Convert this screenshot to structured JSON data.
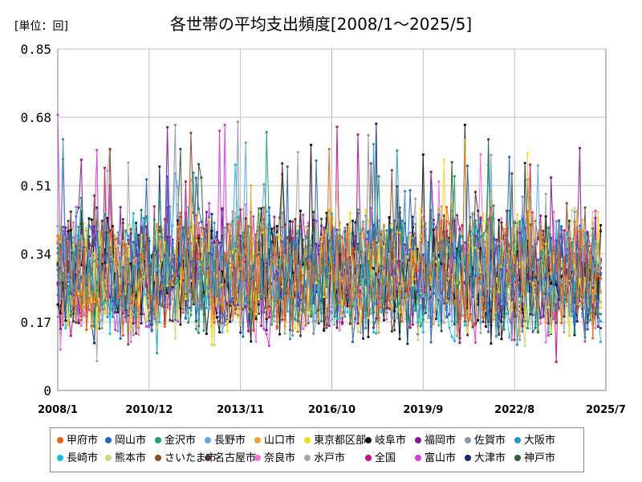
{
  "unit_label": "[単位：回]",
  "chart_data": {
    "type": "line",
    "title": "各世帯の平均支出頻度[2008/1～2025/5]",
    "xlabel": "",
    "ylabel": "",
    "ylim": [
      0,
      0.85
    ],
    "yticks": [
      0,
      0.17,
      0.34,
      0.51,
      0.68,
      0.85
    ],
    "ytick_labels": [
      "0",
      "0.17",
      "0.34",
      "0.51",
      "0.68",
      "0.85"
    ],
    "xlim": [
      "2008-01",
      "2025-07"
    ],
    "xticks": [
      "2008-01",
      "2010-12",
      "2013-11",
      "2016-10",
      "2019-09",
      "2022-08",
      "2025-07"
    ],
    "xtick_labels": [
      "2008/1",
      "2010/12",
      "2013/11",
      "2016/10",
      "2019/9",
      "2022/8",
      "2025/7"
    ],
    "grid": true,
    "legend_position": "bottom",
    "start": "2008-01",
    "end": "2025-05",
    "series": [
      {
        "name": "甲府市",
        "color": "#ED5F19"
      },
      {
        "name": "岡山市",
        "color": "#2A63C9"
      },
      {
        "name": "金沢市",
        "color": "#1F9E74"
      },
      {
        "name": "長野市",
        "color": "#63A7E5"
      },
      {
        "name": "山口市",
        "color": "#F0A22A"
      },
      {
        "name": "東京都区部",
        "color": "#F2DC12"
      },
      {
        "name": "岐阜市",
        "color": "#111111"
      },
      {
        "name": "福岡市",
        "color": "#8B149B"
      },
      {
        "name": "佐賀市",
        "color": "#8B98A9"
      },
      {
        "name": "大阪市",
        "color": "#2596C9"
      },
      {
        "name": "長崎市",
        "color": "#17BFE6"
      },
      {
        "name": "熊本市",
        "color": "#C6D97B"
      },
      {
        "name": "さいたま市",
        "color": "#8E4A2B"
      },
      {
        "name": "名古屋市",
        "color": "#59332A"
      },
      {
        "name": "奈良市",
        "color": "#F070DA"
      },
      {
        "name": "水戸市",
        "color": "#A6A6A6"
      },
      {
        "name": "全国",
        "color": "#C0127E"
      },
      {
        "name": "富山市",
        "color": "#D63AE2"
      },
      {
        "name": "大津市",
        "color": "#0D2B73"
      },
      {
        "name": "神戸市",
        "color": "#2E5E3A"
      }
    ]
  }
}
